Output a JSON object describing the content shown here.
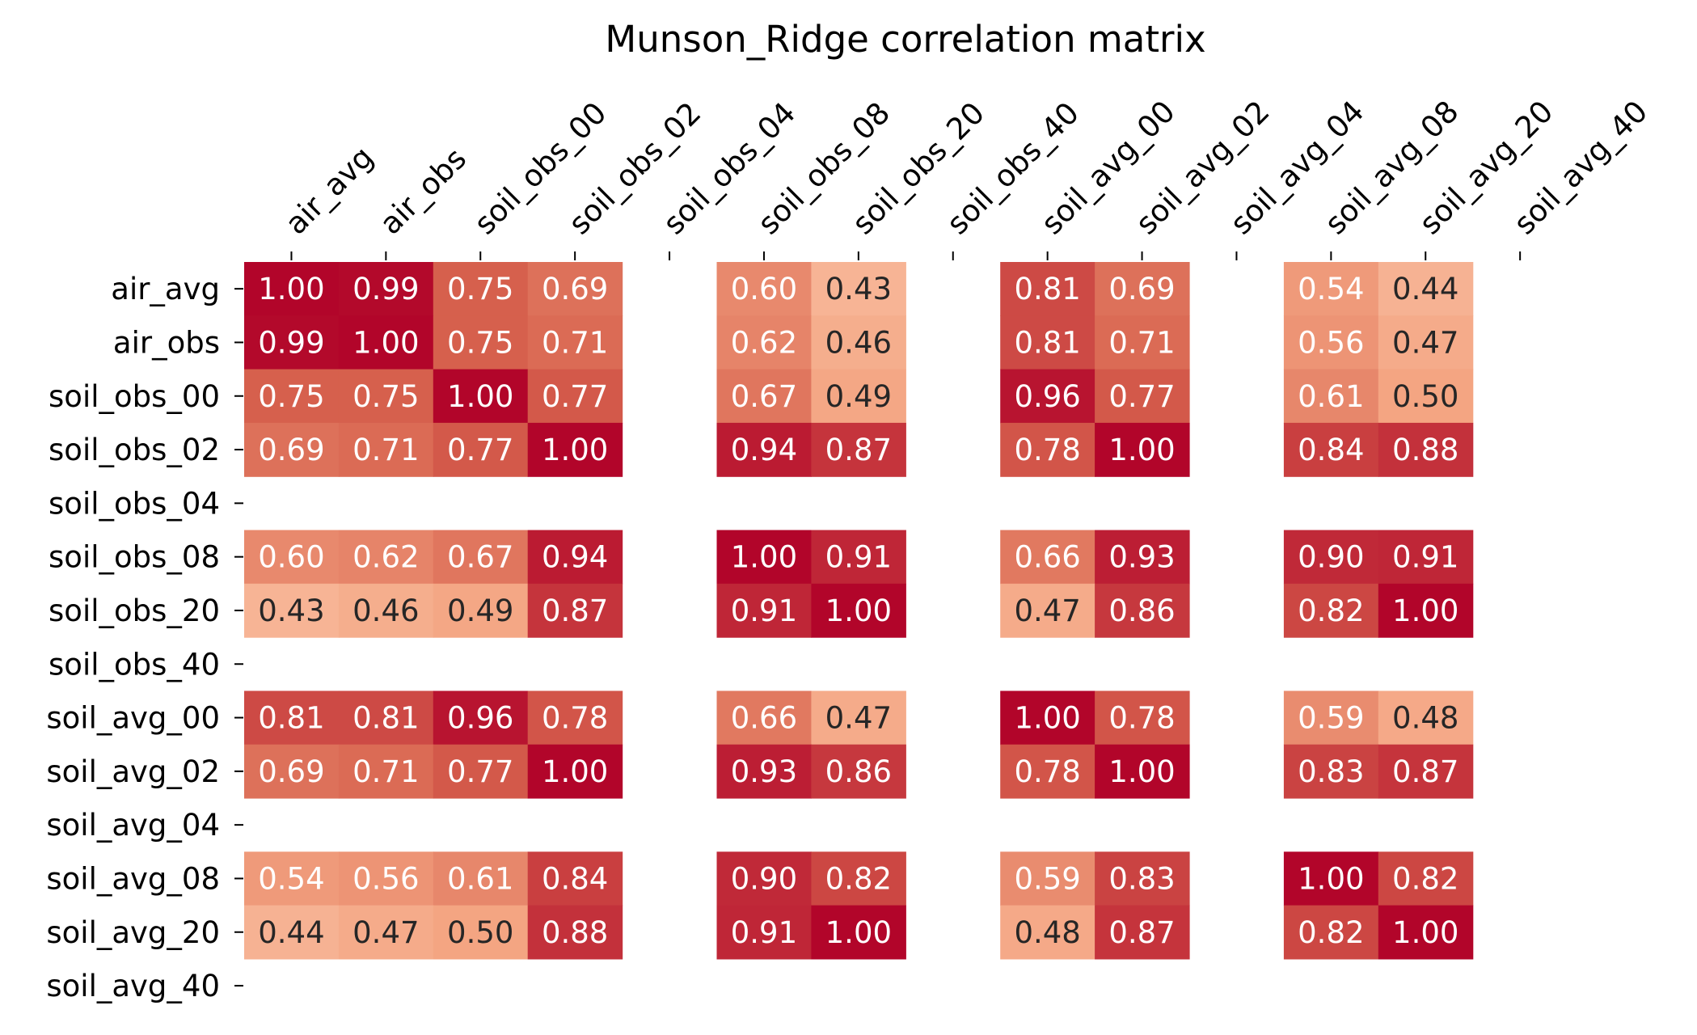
{
  "chart_data": {
    "type": "heatmap",
    "title": "Munson_Ridge correlation matrix",
    "xlabel": "",
    "ylabel": "",
    "labels": [
      "air_avg",
      "air_obs",
      "soil_obs_00",
      "soil_obs_02",
      "soil_obs_04",
      "soil_obs_08",
      "soil_obs_20",
      "soil_obs_40",
      "soil_avg_00",
      "soil_avg_02",
      "soil_avg_04",
      "soil_avg_08",
      "soil_avg_20",
      "soil_avg_40"
    ],
    "x_labels_position": "top",
    "colormap": "RdBu_r",
    "vmin": -1,
    "vmax": 1,
    "annotation_format": "0.00",
    "colors": {
      "high": "#b2052a",
      "low_text": "#262626",
      "high_text": "#ffffff"
    },
    "values": [
      [
        1.0,
        0.99,
        0.75,
        0.69,
        null,
        0.6,
        0.43,
        null,
        0.81,
        0.69,
        null,
        0.54,
        0.44,
        null
      ],
      [
        0.99,
        1.0,
        0.75,
        0.71,
        null,
        0.62,
        0.46,
        null,
        0.81,
        0.71,
        null,
        0.56,
        0.47,
        null
      ],
      [
        0.75,
        0.75,
        1.0,
        0.77,
        null,
        0.67,
        0.49,
        null,
        0.96,
        0.77,
        null,
        0.61,
        0.5,
        null
      ],
      [
        0.69,
        0.71,
        0.77,
        1.0,
        null,
        0.94,
        0.87,
        null,
        0.78,
        1.0,
        null,
        0.84,
        0.88,
        null
      ],
      [
        null,
        null,
        null,
        null,
        null,
        null,
        null,
        null,
        null,
        null,
        null,
        null,
        null,
        null
      ],
      [
        0.6,
        0.62,
        0.67,
        0.94,
        null,
        1.0,
        0.91,
        null,
        0.66,
        0.93,
        null,
        0.9,
        0.91,
        null
      ],
      [
        0.43,
        0.46,
        0.49,
        0.87,
        null,
        0.91,
        1.0,
        null,
        0.47,
        0.86,
        null,
        0.82,
        1.0,
        null
      ],
      [
        null,
        null,
        null,
        null,
        null,
        null,
        null,
        null,
        null,
        null,
        null,
        null,
        null,
        null
      ],
      [
        0.81,
        0.81,
        0.96,
        0.78,
        null,
        0.66,
        0.47,
        null,
        1.0,
        0.78,
        null,
        0.59,
        0.48,
        null
      ],
      [
        0.69,
        0.71,
        0.77,
        1.0,
        null,
        0.93,
        0.86,
        null,
        0.78,
        1.0,
        null,
        0.83,
        0.87,
        null
      ],
      [
        null,
        null,
        null,
        null,
        null,
        null,
        null,
        null,
        null,
        null,
        null,
        null,
        null,
        null
      ],
      [
        0.54,
        0.56,
        0.61,
        0.84,
        null,
        0.9,
        0.82,
        null,
        0.59,
        0.83,
        null,
        1.0,
        0.82,
        null
      ],
      [
        0.44,
        0.47,
        0.5,
        0.88,
        null,
        0.91,
        1.0,
        null,
        0.48,
        0.87,
        null,
        0.82,
        1.0,
        null
      ],
      [
        null,
        null,
        null,
        null,
        null,
        null,
        null,
        null,
        null,
        null,
        null,
        null,
        null,
        null
      ]
    ]
  }
}
